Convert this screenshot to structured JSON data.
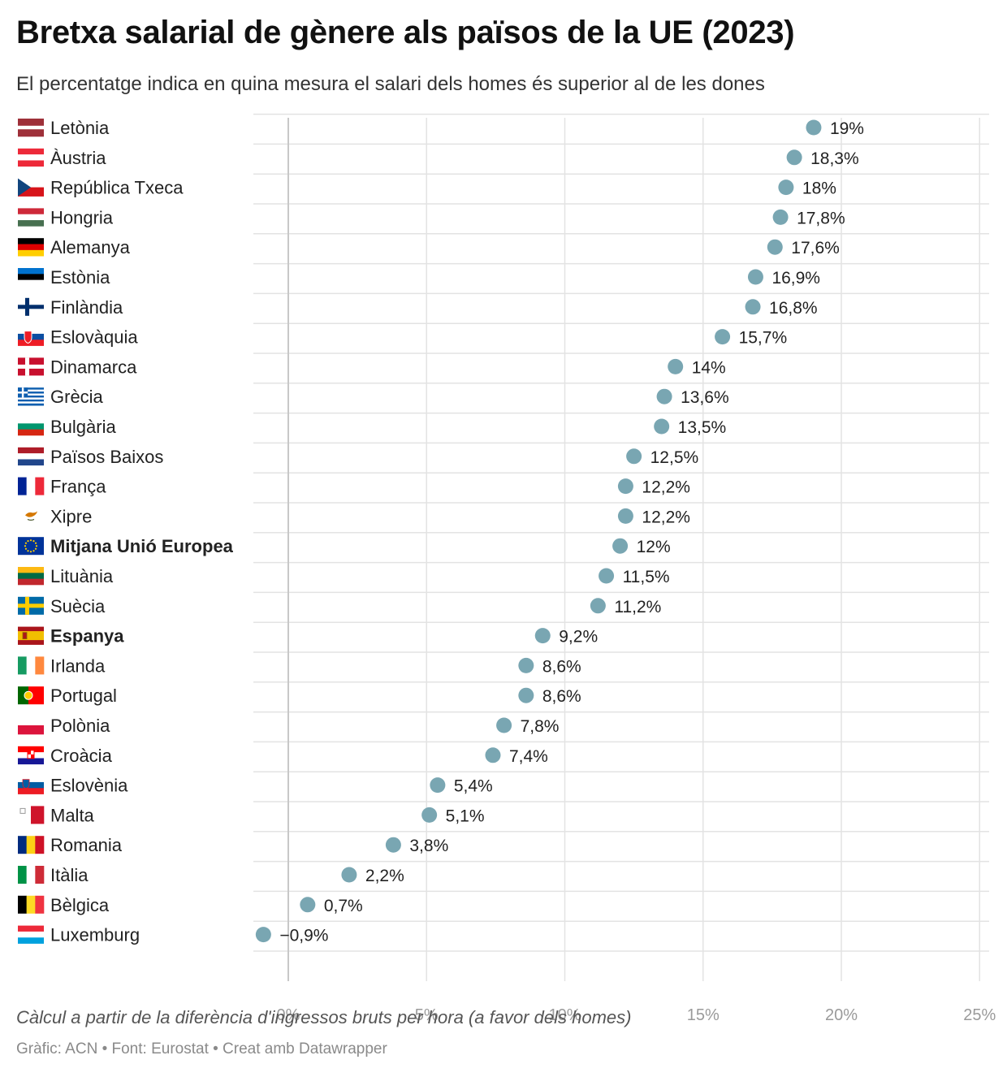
{
  "title": "Bretxa salarial de gènere als països de la UE (2023)",
  "subtitle": "El percentatge indica en quina mesura el salari dels homes és superior al de les dones",
  "axis_note": "Càlcul a partir de la diferència d'ingressos bruts per hora (a favor dels homes)",
  "source": "Gràfic: ACN • Font: Eurostat • Creat amb Datawrapper",
  "colors": {
    "dot": "#79a6b2",
    "grid": "#e3e3e3",
    "zero_line": "#c8c8c8"
  },
  "chart_data": {
    "type": "scatter",
    "orientation": "horizontal-dot",
    "x_unit": "%",
    "xlim": [
      -1.2,
      25.5
    ],
    "x_ticks": [
      0,
      5,
      10,
      15,
      20,
      25
    ],
    "x_tick_labels": [
      "0%",
      "5%",
      "10%",
      "15%",
      "20%",
      "25%"
    ],
    "grid": true,
    "categories": [
      "Letònia",
      "Àustria",
      "República Txeca",
      "Hongria",
      "Alemanya",
      "Estònia",
      "Finlàndia",
      "Eslovàquia",
      "Dinamarca",
      "Grècia",
      "Bulgària",
      "Països Baixos",
      "França",
      "Xipre",
      "Mitjana Unió Europea",
      "Lituània",
      "Suècia",
      "Espanya",
      "Irlanda",
      "Portugal",
      "Polònia",
      "Croàcia",
      "Eslovènia",
      "Malta",
      "Romania",
      "Itàlia",
      "Bèlgica",
      "Luxemburg"
    ],
    "values": [
      19,
      18.3,
      18,
      17.8,
      17.6,
      16.9,
      16.8,
      15.7,
      14,
      13.6,
      13.5,
      12.5,
      12.2,
      12.2,
      12,
      11.5,
      11.2,
      9.2,
      8.6,
      8.6,
      7.8,
      7.4,
      5.4,
      5.1,
      3.8,
      2.2,
      0.7,
      -0.9
    ],
    "value_labels": [
      "19%",
      "18,3%",
      "18%",
      "17,8%",
      "17,6%",
      "16,9%",
      "16,8%",
      "15,7%",
      "14%",
      "13,6%",
      "13,5%",
      "12,5%",
      "12,2%",
      "12,2%",
      "12%",
      "11,5%",
      "11,2%",
      "9,2%",
      "8,6%",
      "8,6%",
      "7,8%",
      "7,4%",
      "5,4%",
      "5,1%",
      "3,8%",
      "2,2%",
      "0,7%",
      "−0,9%"
    ],
    "highlighted": [
      "Mitjana Unió Europea",
      "Espanya"
    ],
    "flag_icons": [
      "latvia-flag-icon",
      "austria-flag-icon",
      "czech-flag-icon",
      "hungary-flag-icon",
      "germany-flag-icon",
      "estonia-flag-icon",
      "finland-flag-icon",
      "slovakia-flag-icon",
      "denmark-flag-icon",
      "greece-flag-icon",
      "bulgaria-flag-icon",
      "netherlands-flag-icon",
      "france-flag-icon",
      "cyprus-flag-icon",
      "eu-flag-icon",
      "lithuania-flag-icon",
      "sweden-flag-icon",
      "spain-flag-icon",
      "ireland-flag-icon",
      "portugal-flag-icon",
      "poland-flag-icon",
      "croatia-flag-icon",
      "slovenia-flag-icon",
      "malta-flag-icon",
      "romania-flag-icon",
      "italy-flag-icon",
      "belgium-flag-icon",
      "luxembourg-flag-icon"
    ]
  }
}
